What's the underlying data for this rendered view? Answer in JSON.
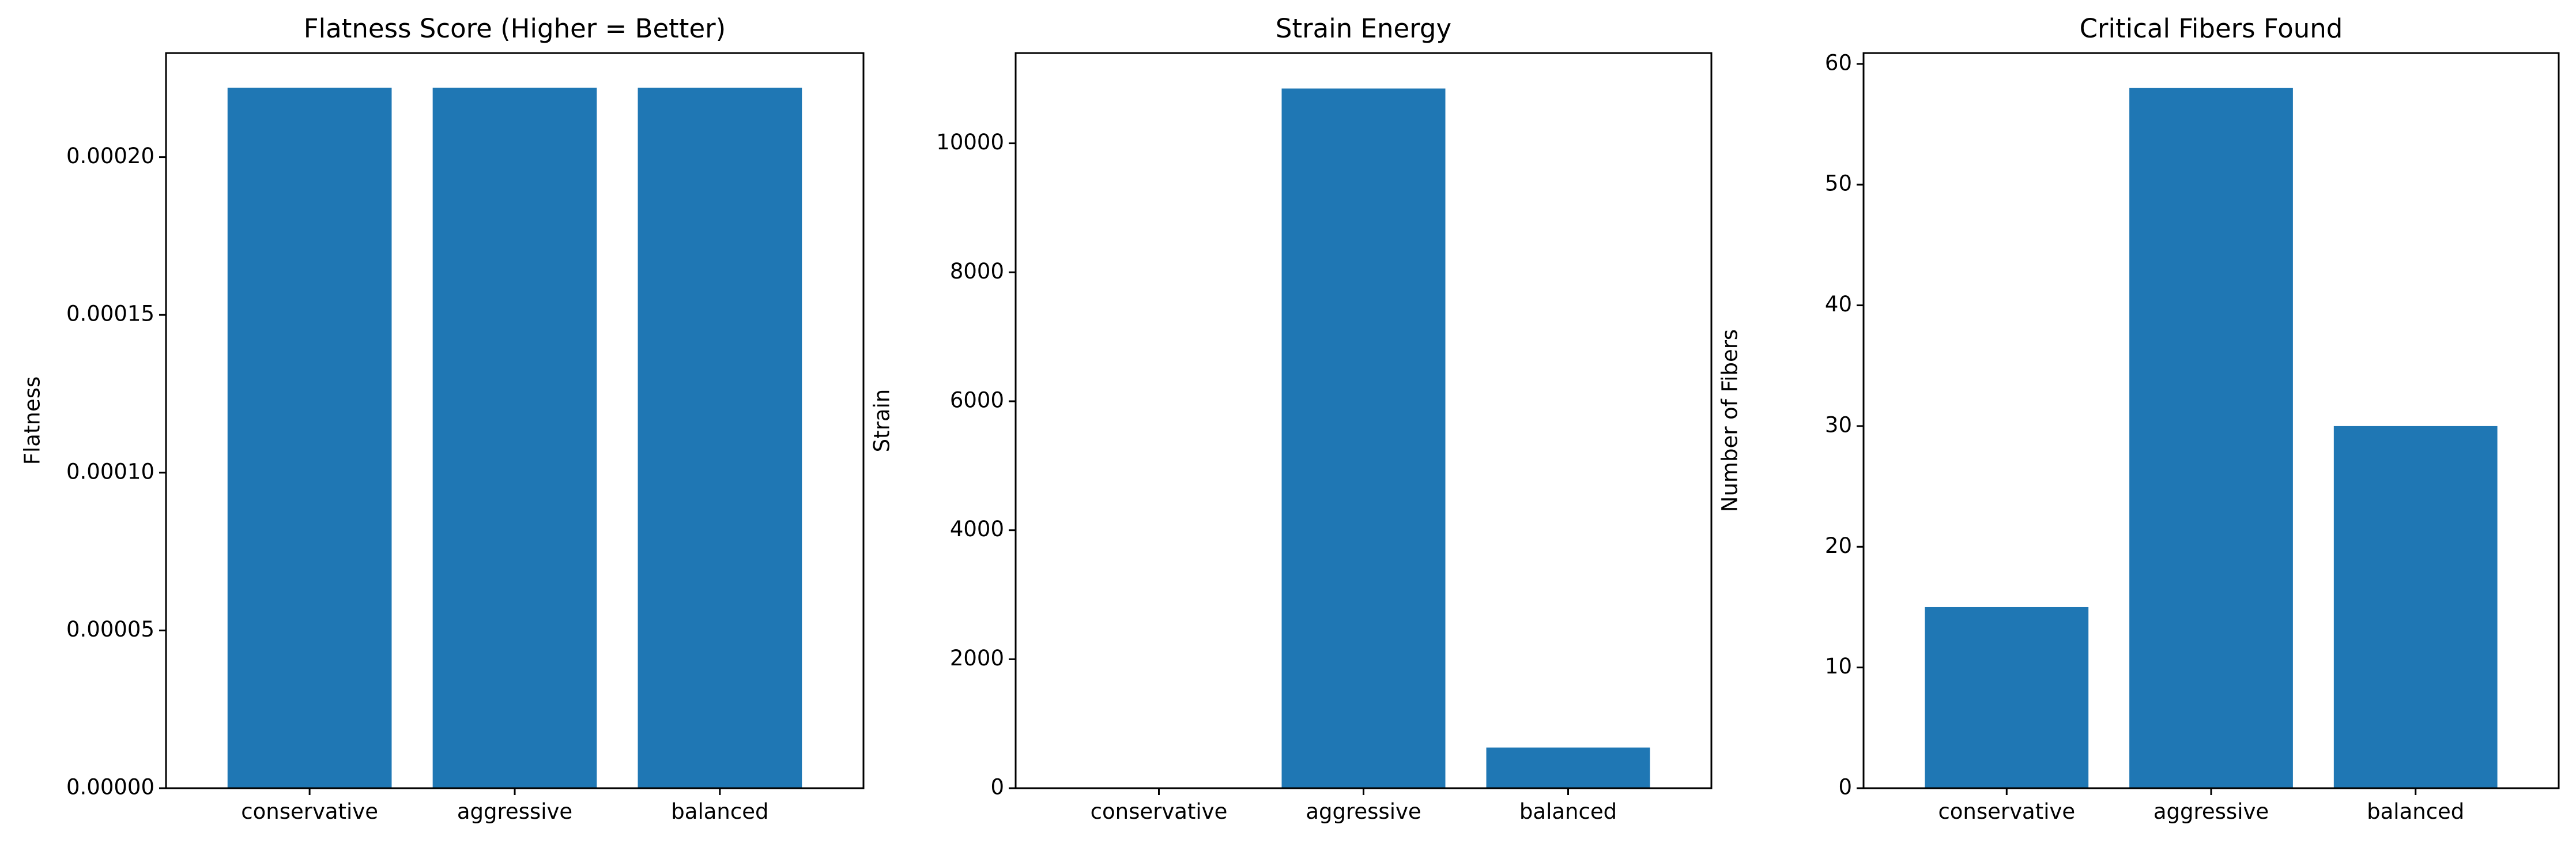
{
  "colors": {
    "bar": "#1f77b4",
    "axis": "#000000",
    "background": "#ffffff"
  },
  "chart_data": [
    {
      "type": "bar",
      "title": "Flatness Score (Higher = Better)",
      "xlabel": "",
      "ylabel": "Flatness",
      "categories": [
        "conservative",
        "aggressive",
        "balanced"
      ],
      "values": [
        0.000222,
        0.000222,
        0.000222
      ],
      "ylim": [
        0,
        0.000233
      ],
      "yticks": [
        0,
        5e-05,
        0.0001,
        0.00015,
        0.0002
      ],
      "ytick_labels": [
        "0.00000",
        "0.00005",
        "0.00010",
        "0.00015",
        "0.00020"
      ],
      "grid": false
    },
    {
      "type": "bar",
      "title": "Strain Energy",
      "xlabel": "",
      "ylabel": "Strain",
      "categories": [
        "conservative",
        "aggressive",
        "balanced"
      ],
      "values": [
        5,
        10850,
        630
      ],
      "ylim": [
        0,
        11400
      ],
      "yticks": [
        0,
        2000,
        4000,
        6000,
        8000,
        10000
      ],
      "ytick_labels": [
        "0",
        "2000",
        "4000",
        "6000",
        "8000",
        "10000"
      ],
      "grid": false
    },
    {
      "type": "bar",
      "title": "Critical Fibers Found",
      "xlabel": "",
      "ylabel": "Number of Fibers",
      "categories": [
        "conservative",
        "aggressive",
        "balanced"
      ],
      "values": [
        15,
        58,
        30
      ],
      "ylim": [
        0,
        60.9
      ],
      "yticks": [
        0,
        10,
        20,
        30,
        40,
        50,
        60
      ],
      "ytick_labels": [
        "0",
        "10",
        "20",
        "30",
        "40",
        "50",
        "60"
      ],
      "grid": false
    }
  ]
}
